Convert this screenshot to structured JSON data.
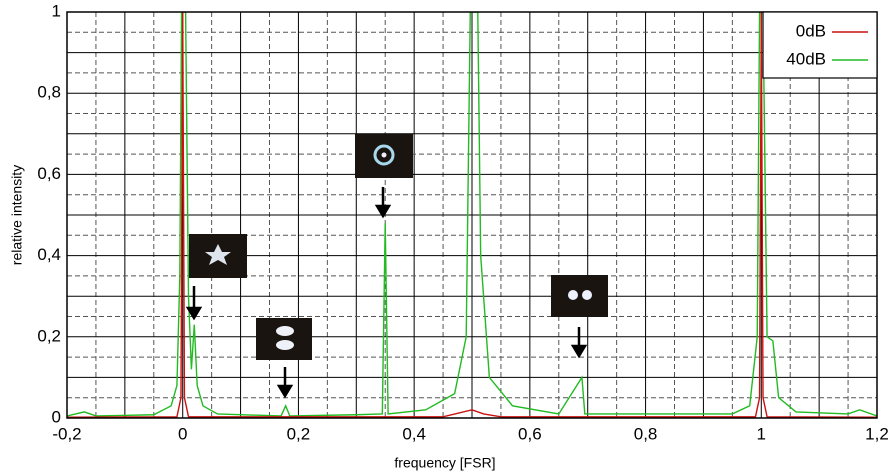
{
  "chart_data": {
    "type": "line",
    "xlabel": "frequency [FSR]",
    "ylabel": "relative intensity",
    "xlim": [
      -0.2,
      1.2
    ],
    "ylim": [
      0,
      1
    ],
    "xticks": [
      {
        "value": -0.2,
        "label": "-0,2"
      },
      0,
      {
        "value": 0.2,
        "label": "0,2"
      },
      {
        "value": 0.4,
        "label": "0,4"
      },
      {
        "value": 0.6,
        "label": "0,6"
      },
      {
        "value": 0.8,
        "label": "0,8"
      },
      1,
      {
        "value": 1.2,
        "label": "1,2"
      }
    ],
    "yticks": [
      0,
      {
        "value": 0.2,
        "label": "0,2"
      },
      {
        "value": 0.4,
        "label": "0,4"
      },
      {
        "value": 0.6,
        "label": "0,6"
      },
      {
        "value": 0.8,
        "label": "0,8"
      },
      1
    ],
    "grid": true,
    "legend": "top-right",
    "series": [
      {
        "name": "0dB",
        "color": "#cc1111",
        "x": [
          -0.2,
          -0.01,
          -0.003,
          0,
          0.003,
          0.01,
          0.45,
          0.5,
          0.52,
          0.55,
          0.99,
          0.997,
          1,
          1.003,
          1.01,
          1.2
        ],
        "values": [
          0.002,
          0.003,
          0.05,
          1,
          0.05,
          0.003,
          0.003,
          0.02,
          0.01,
          0.003,
          0.003,
          0.05,
          1,
          0.05,
          0.003,
          0.002
        ]
      },
      {
        "name": "40dB",
        "color": "#22bb22",
        "x": [
          -0.2,
          -0.17,
          -0.15,
          -0.05,
          -0.02,
          -0.01,
          -0.005,
          -0.002,
          0.005,
          0.01,
          0.015,
          0.02,
          0.025,
          0.035,
          0.06,
          0.17,
          0.178,
          0.185,
          0.3,
          0.345,
          0.35,
          0.355,
          0.42,
          0.47,
          0.49,
          0.497,
          0.51,
          0.515,
          0.53,
          0.57,
          0.65,
          0.69,
          0.695,
          0.85,
          0.95,
          0.98,
          0.993,
          0.997,
          1.003,
          1.01,
          1.02,
          1.03,
          1.06,
          1.15,
          1.17,
          1.2
        ],
        "values": [
          0.005,
          0.015,
          0.005,
          0.008,
          0.03,
          0.08,
          0.35,
          1,
          1,
          0.3,
          0.12,
          0.23,
          0.08,
          0.03,
          0.01,
          0.005,
          0.03,
          0.005,
          0.008,
          0.01,
          0.48,
          0.01,
          0.02,
          0.06,
          0.2,
          1,
          1,
          0.4,
          0.1,
          0.03,
          0.01,
          0.1,
          0.01,
          0.01,
          0.01,
          0.03,
          0.2,
          1,
          1,
          0.2,
          0.19,
          0.05,
          0.015,
          0.01,
          0.02,
          0.005
        ]
      }
    ]
  }
}
